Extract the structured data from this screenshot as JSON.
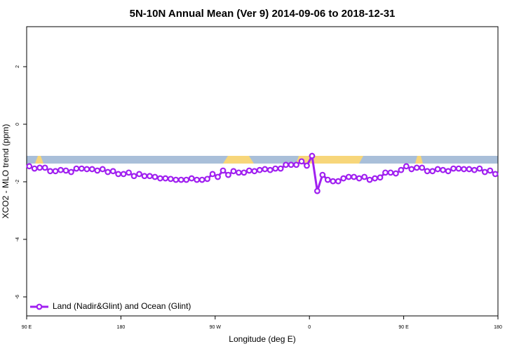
{
  "chart_data": {
    "type": "line",
    "title": "5N-10N Annual Mean (Ver 9)   2014-09-06 to 2018-12-31",
    "x_label": "Longitude (deg E)",
    "y_label": "XCO2 - MLO trend (ppm)",
    "xlim": [
      -270,
      180
    ],
    "xticks": [
      {
        "value": -270,
        "label": "90 E"
      },
      {
        "value": -180,
        "label": "180"
      },
      {
        "value": -90,
        "label": "90 W"
      },
      0,
      {
        "value": 90,
        "label": "90 E"
      },
      180
    ],
    "ylim": [
      -6.66,
      3.39
    ],
    "yticks": [
      2,
      0,
      -2,
      -4,
      -6
    ],
    "legend": "bottom-left",
    "x": [
      -267.5,
      -262.5,
      -257.5,
      -252.5,
      -247.5,
      -242.5,
      -237.5,
      -232.5,
      -227.5,
      -222.5,
      -217.5,
      -212.5,
      -207.5,
      -202.5,
      -197.5,
      -192.5,
      -187.5,
      -182.5,
      -177.5,
      -172.5,
      -167.5,
      -162.5,
      -157.5,
      -152.5,
      -147.5,
      -142.5,
      -137.5,
      -132.5,
      -127.5,
      -122.5,
      -117.5,
      -112.5,
      -107.5,
      -102.5,
      -97.5,
      -92.5,
      -87.5,
      -82.5,
      -77.5,
      -72.5,
      -67.5,
      -62.5,
      -57.5,
      -52.5,
      -47.5,
      -42.5,
      -37.5,
      -32.5,
      -27.5,
      -22.5,
      -17.5,
      -12.5,
      -7.5,
      -2.5,
      2.5,
      7.5,
      12.5,
      17.5,
      22.5,
      27.5,
      32.5,
      37.5,
      42.5,
      47.5,
      52.5,
      57.5,
      62.5,
      67.5,
      72.5,
      77.5,
      82.5,
      87.5,
      92.5,
      97.5,
      102.5,
      107.5,
      112.5,
      117.5,
      122.5,
      127.5,
      132.5,
      137.5,
      142.5,
      147.5,
      152.5,
      157.5,
      162.5,
      167.5,
      172.5,
      177.5
    ],
    "series": [
      {
        "name": "Land (Nadir&Glint) and Ocean (Glint)",
        "color": "#a020f0",
        "values": [
          -1.46,
          -1.54,
          -1.51,
          -1.51,
          -1.63,
          -1.63,
          -1.59,
          -1.61,
          -1.66,
          -1.54,
          -1.54,
          -1.56,
          -1.56,
          -1.61,
          -1.56,
          -1.66,
          -1.63,
          -1.73,
          -1.73,
          -1.68,
          -1.8,
          -1.73,
          -1.8,
          -1.8,
          -1.83,
          -1.88,
          -1.88,
          -1.9,
          -1.93,
          -1.93,
          -1.93,
          -1.88,
          -1.93,
          -1.93,
          -1.9,
          -1.73,
          -1.83,
          -1.61,
          -1.76,
          -1.63,
          -1.68,
          -1.68,
          -1.61,
          -1.63,
          -1.59,
          -1.56,
          -1.59,
          -1.54,
          -1.54,
          -1.41,
          -1.41,
          -1.41,
          -1.29,
          -1.44,
          -1.1,
          -2.32,
          -1.76,
          -1.93,
          -1.98,
          -1.98,
          -1.88,
          -1.83,
          -1.83,
          -1.88,
          -1.83,
          -1.93,
          -1.88,
          -1.85,
          -1.68,
          -1.68,
          -1.71,
          -1.59,
          -1.46,
          -1.56,
          -1.51,
          -1.51,
          -1.63,
          -1.63,
          -1.56,
          -1.59,
          -1.63,
          -1.54,
          -1.54,
          -1.56,
          -1.56,
          -1.59,
          -1.54,
          -1.66,
          -1.61,
          -1.73
        ]
      }
    ]
  }
}
